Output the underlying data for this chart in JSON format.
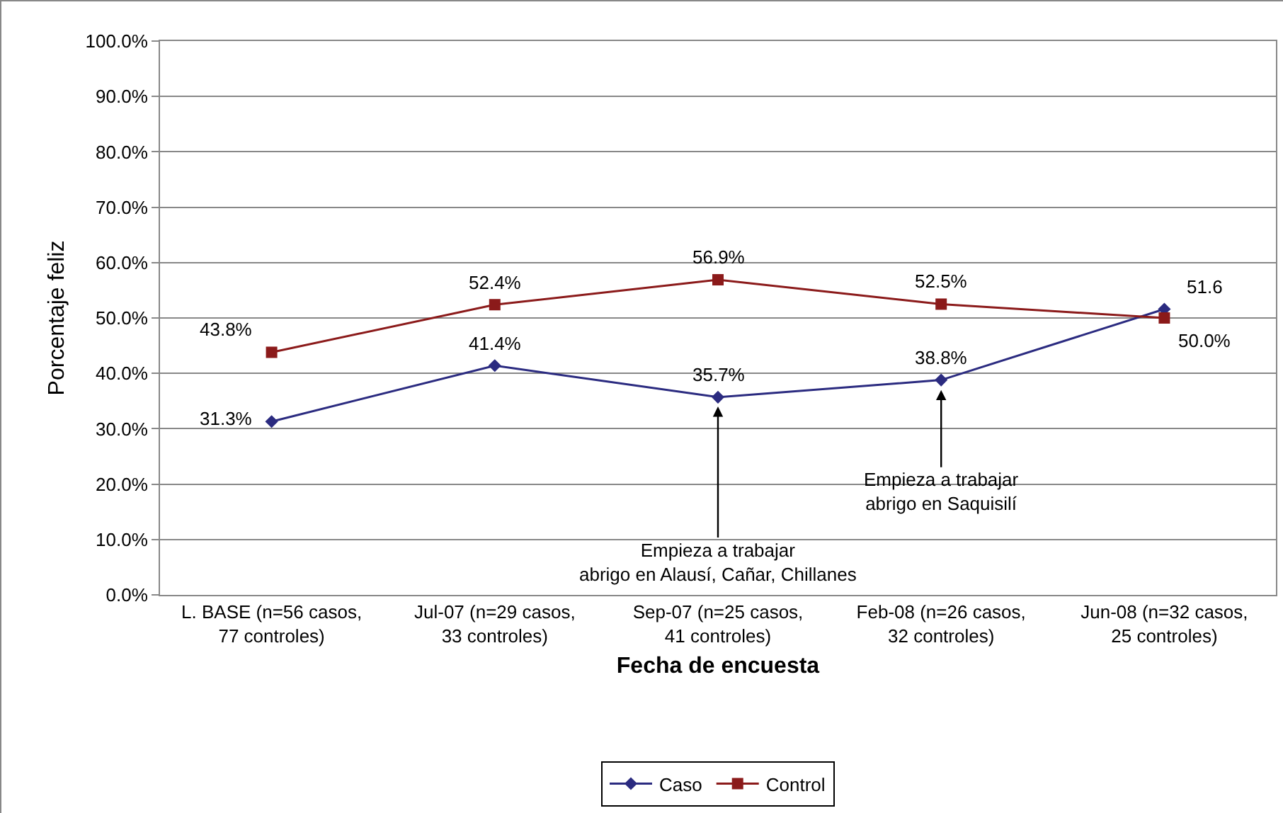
{
  "chart_data": {
    "type": "line",
    "xlabel": "Fecha de encuesta",
    "ylabel": "Porcentaje feliz",
    "categories": [
      "L. BASE (n=56 casos,\n77 controles)",
      "Jul-07 (n=29 casos,\n33 controles)",
      "Sep-07 (n=25 casos,\n41 controles)",
      "Feb-08 (n=26 casos,\n32 controles)",
      "Jun-08 (n=32 casos,\n25 controles)"
    ],
    "series": [
      {
        "name": "Caso",
        "color": "#2b2b80",
        "marker": "diamond",
        "values": [
          31.3,
          41.4,
          35.7,
          38.8,
          51.6
        ],
        "value_labels": [
          "31.3%",
          "41.4%",
          "35.7%",
          "38.8%",
          "51.6"
        ]
      },
      {
        "name": "Control",
        "color": "#8b1a1a",
        "marker": "square",
        "values": [
          43.8,
          52.4,
          56.9,
          52.5,
          50.0
        ],
        "value_labels": [
          "43.8%",
          "52.4%",
          "56.9%",
          "52.5%",
          "50.0%"
        ]
      }
    ],
    "ylim": [
      0,
      100
    ],
    "yticks": [
      {
        "value": 0,
        "label": "0.0%"
      },
      {
        "value": 10,
        "label": "10.0%"
      },
      {
        "value": 20,
        "label": "20.0%"
      },
      {
        "value": 30,
        "label": "30.0%"
      },
      {
        "value": 40,
        "label": "40.0%"
      },
      {
        "value": 50,
        "label": "50.0%"
      },
      {
        "value": 60,
        "label": "60.0%"
      },
      {
        "value": 70,
        "label": "70.0%"
      },
      {
        "value": 80,
        "label": "80.0%"
      },
      {
        "value": 90,
        "label": "90.0%"
      },
      {
        "value": 100,
        "label": "100.0%"
      }
    ],
    "grid": "y",
    "legend": "bottom",
    "line_style": "solid",
    "annotations": [
      {
        "text": "Empieza a trabajar\nabrigo en Alausí, Cañar, Chillanes",
        "x": "Sep-07 (n=25 casos,\n41 controles)",
        "y": 34
      },
      {
        "text": "Empieza a trabajar\nabrigo en Saquisilí",
        "x": "Feb-08 (n=26 casos,\n32 controles)",
        "y": 37
      }
    ]
  }
}
